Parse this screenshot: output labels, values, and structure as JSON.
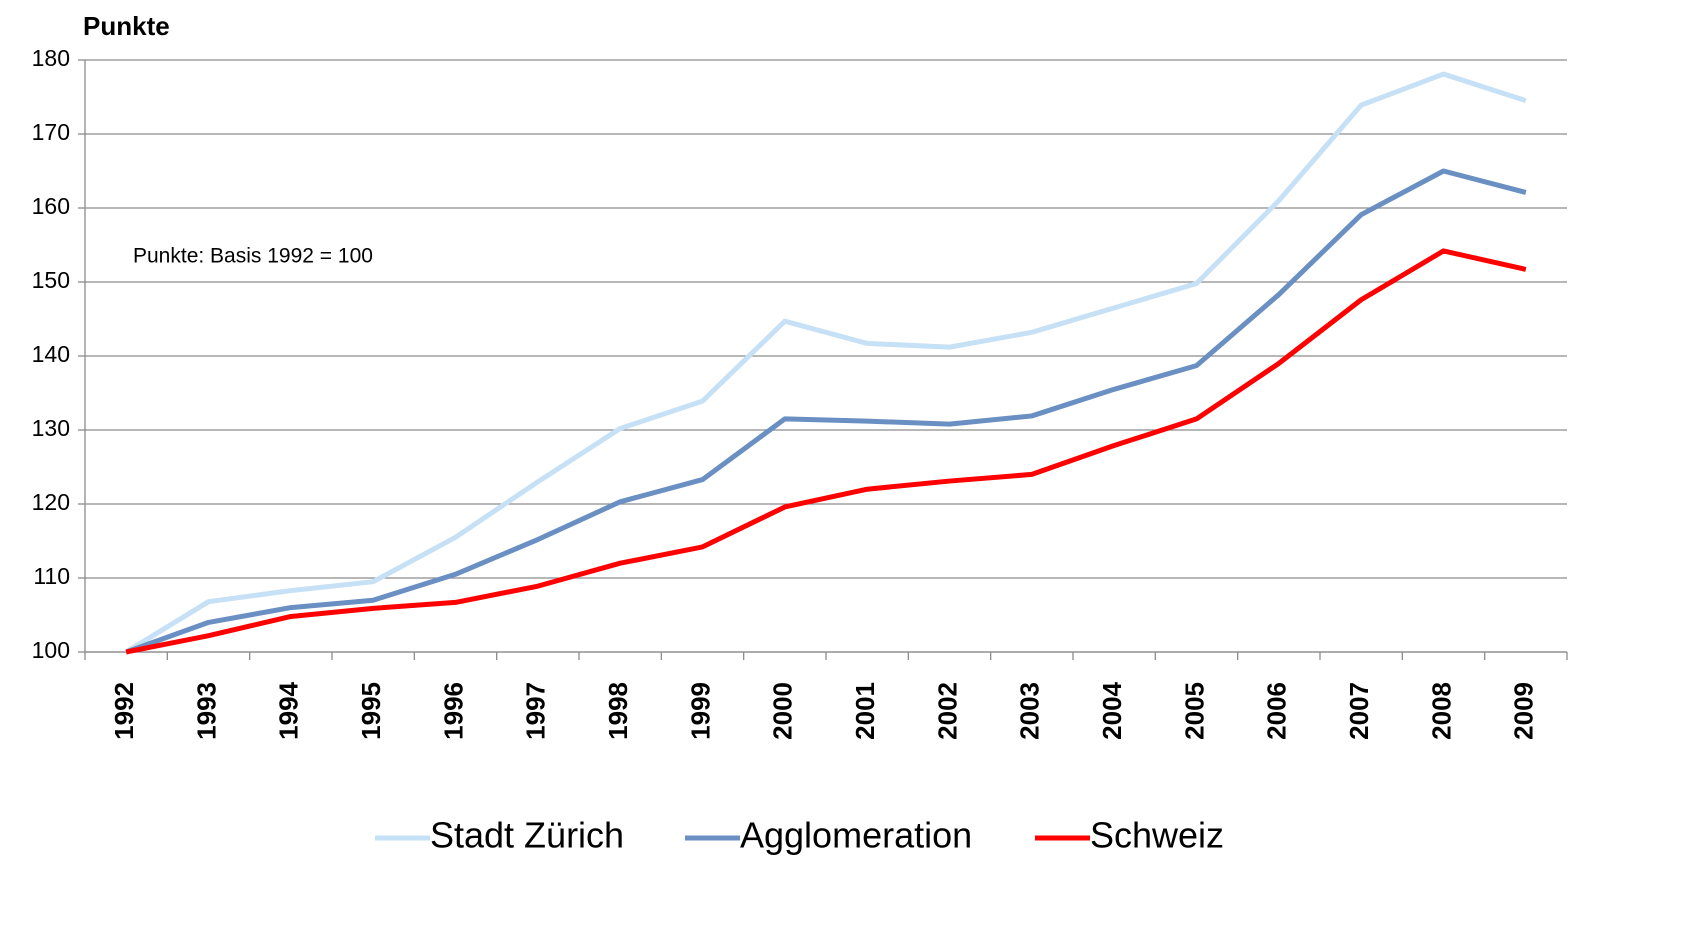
{
  "chart_data": {
    "type": "line",
    "y_label": "Punkte",
    "annotation": "Punkte: Basis 1992 = 100",
    "categories": [
      "1992",
      "1993",
      "1994",
      "1995",
      "1996",
      "1997",
      "1998",
      "1999",
      "2000",
      "2001",
      "2002",
      "2003",
      "2004",
      "2005",
      "2006",
      "2007",
      "2008",
      "2009"
    ],
    "series": [
      {
        "name": "Stadt Zürich",
        "color": "#c6e0f5",
        "values": [
          100,
          106.8,
          108.3,
          109.5,
          115.5,
          123,
          130.2,
          133.9,
          144.7,
          141.7,
          141.2,
          143.2,
          146.5,
          149.8,
          161,
          173.9,
          178.1,
          174.5
        ]
      },
      {
        "name": "Agglomeration",
        "color": "#6a8fc2",
        "values": [
          100,
          104,
          106,
          107,
          110.5,
          115.2,
          120.3,
          123.3,
          131.5,
          131.2,
          130.8,
          131.9,
          135.5,
          138.7,
          148.3,
          159.1,
          165,
          162.1
        ]
      },
      {
        "name": "Schweiz",
        "color": "#ff0000",
        "values": [
          100,
          102.2,
          104.8,
          105.9,
          106.7,
          108.9,
          112,
          114.2,
          119.6,
          122,
          123.1,
          124,
          127.9,
          131.5,
          139,
          147.6,
          154.2,
          151.7
        ]
      }
    ],
    "ylim": [
      100,
      180
    ],
    "yticks": [
      100,
      110,
      120,
      130,
      140,
      150,
      160,
      170,
      180
    ],
    "grid": true,
    "legend": "bottom"
  }
}
